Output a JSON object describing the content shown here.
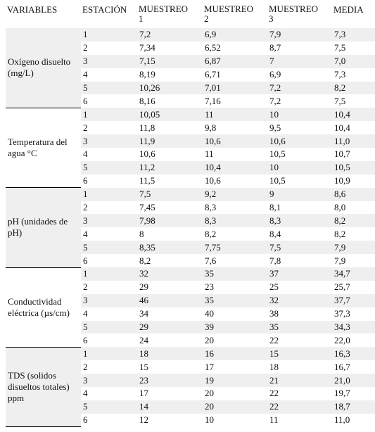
{
  "table": {
    "header": [
      "VARIABLES",
      "ESTACIÓN",
      "MUESTREO 1",
      "MUESTREO 2",
      "MUESTREO 3",
      "MEDIA"
    ],
    "groups": [
      {
        "variable": "Oxígeno disuelto (mg/L)",
        "rows": [
          [
            "1",
            "7,2",
            "6,9",
            "7,9",
            "7,3"
          ],
          [
            "2",
            "7,34",
            "6,52",
            "8,7",
            "7,5"
          ],
          [
            "3",
            "7,15",
            "6,87",
            "7",
            "7,0"
          ],
          [
            "4",
            "8,19",
            "6,71",
            "6,9",
            "7,3"
          ],
          [
            "5",
            "10,26",
            "7,01",
            "7,2",
            "8,2"
          ],
          [
            "6",
            "8,16",
            "7,16",
            "7,2",
            "7,5"
          ]
        ]
      },
      {
        "variable": "Temperatura del agua °C",
        "rows": [
          [
            "1",
            "10,05",
            "11",
            "10",
            "10,4"
          ],
          [
            "2",
            "11,8",
            "9,8",
            "9,5",
            "10,4"
          ],
          [
            "3",
            "11,9",
            "10,6",
            "10,6",
            "11,0"
          ],
          [
            "4",
            "10,6",
            "11",
            "10,5",
            "10,7"
          ],
          [
            "5",
            "11,2",
            "10,4",
            "10",
            "10,5"
          ],
          [
            "6",
            "11,5",
            "10,6",
            "10,5",
            "10,9"
          ]
        ]
      },
      {
        "variable": "pH (unidades de pH)",
        "rows": [
          [
            "1",
            "7,5",
            "9,2",
            "9",
            "8,6"
          ],
          [
            "2",
            "7,45",
            "8,3",
            "8,1",
            "8,0"
          ],
          [
            "3",
            "7,98",
            "8,3",
            "8,3",
            "8,2"
          ],
          [
            "4",
            "8",
            "8,2",
            "8,4",
            "8,2"
          ],
          [
            "5",
            "8,35",
            "7,75",
            "7,5",
            "7,9"
          ],
          [
            "6",
            "8,2",
            "7,6",
            "7,8",
            "7,9"
          ]
        ]
      },
      {
        "variable": "Conductividad eléctrica (µs/cm)",
        "rows": [
          [
            "1",
            "32",
            "35",
            "37",
            "34,7"
          ],
          [
            "2",
            "29",
            "23",
            "25",
            "25,7"
          ],
          [
            "3",
            "46",
            "35",
            "32",
            "37,7"
          ],
          [
            "4",
            "34",
            "40",
            "38",
            "37,3"
          ],
          [
            "5",
            "29",
            "39",
            "35",
            "34,3"
          ],
          [
            "6",
            "24",
            "20",
            "22",
            "22,0"
          ]
        ]
      },
      {
        "variable": "TDS (solidos disueltos totales) ppm",
        "rows": [
          [
            "1",
            "18",
            "16",
            "15",
            "16,3"
          ],
          [
            "2",
            "15",
            "17",
            "18",
            "16,7"
          ],
          [
            "3",
            "23",
            "19",
            "21",
            "21,0"
          ],
          [
            "4",
            "17",
            "20",
            "22",
            "19,7"
          ],
          [
            "5",
            "14",
            "20",
            "22",
            "18,7"
          ],
          [
            "6",
            "12",
            "10",
            "11",
            "11,0"
          ]
        ]
      }
    ]
  }
}
